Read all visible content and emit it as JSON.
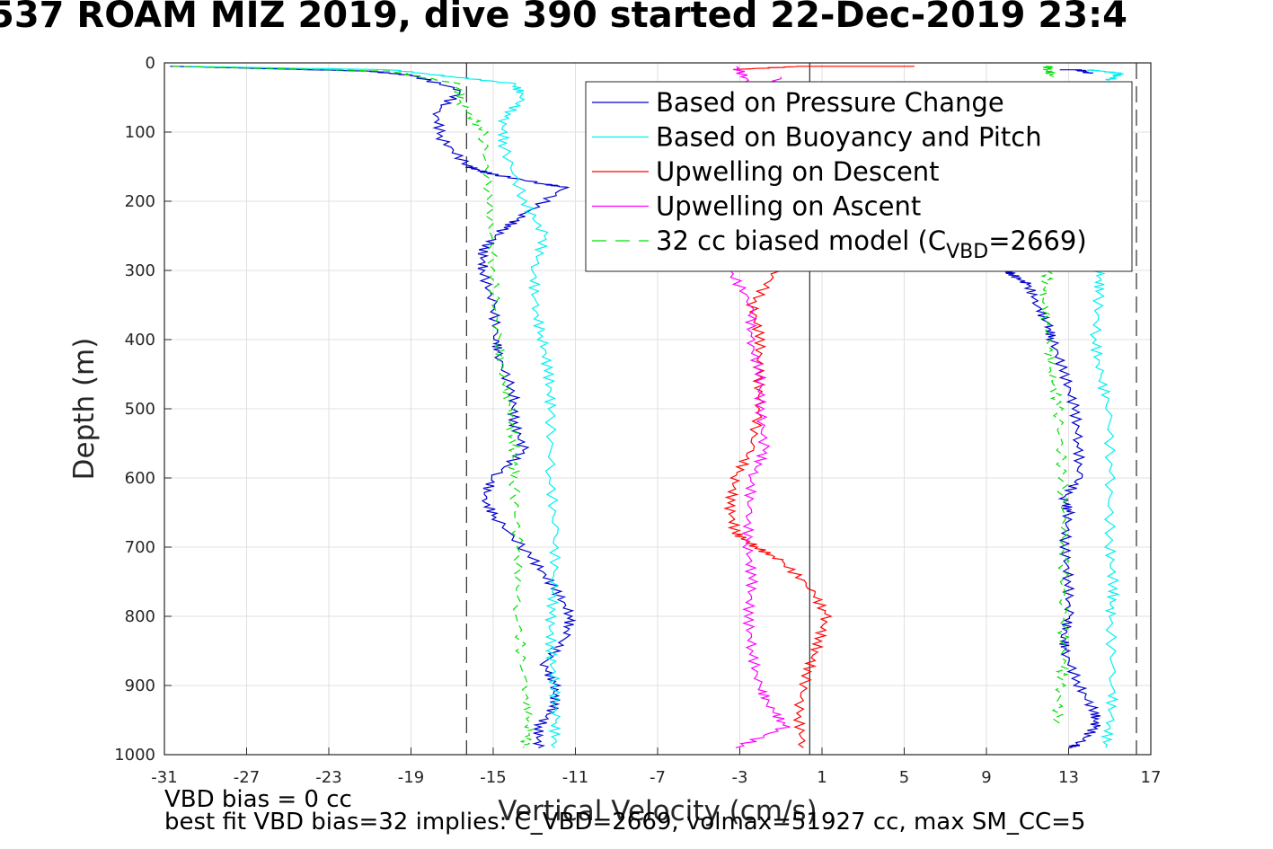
{
  "chart_data": {
    "type": "line",
    "title": "537 ROAM MIZ 2019, dive 390 started 22-Dec-2019 23:4",
    "xlabel": "Vertical Velocity (cm/s)",
    "ylabel": "Depth (m)",
    "xlim": [
      -31,
      17
    ],
    "ylim": [
      0,
      1000
    ],
    "y_reversed": true,
    "xticks": [
      "-31",
      "-27",
      "-23",
      "-19",
      "-15",
      "-11",
      "-7",
      "-3",
      "1",
      "5",
      "9",
      "13",
      "17"
    ],
    "yticks": [
      "0",
      "100",
      "200",
      "300",
      "400",
      "500",
      "600",
      "700",
      "800",
      "900",
      "1000"
    ],
    "grid": true,
    "legend_position": "top-right",
    "vertical_reference_lines": [
      -16.3,
      0.4,
      16.3
    ],
    "series": [
      {
        "name": "Based on Pressure Change",
        "color": "#0000cc",
        "segments": [
          {
            "x": [
              -30.5,
              -21,
              -19,
              -16.5,
              -17.8,
              -17.5,
              -16.2,
              -15.2,
              -12.5,
              -11.5,
              -13.5,
              -14.5,
              -15.5,
              -15.5,
              -15,
              -14.8,
              -14.8,
              -14,
              -14,
              -13.5,
              -15,
              -15.5,
              -14.8,
              -13,
              -12,
              -11.2,
              -11.5,
              -12.5,
              -12,
              -12,
              -12.8,
              -12.8
            ],
            "y": [
              5,
              12,
              18,
              40,
              70,
              110,
              150,
              160,
              175,
              180,
              220,
              240,
              270,
              300,
              350,
              400,
              420,
              480,
              520,
              560,
              600,
              630,
              660,
              720,
              760,
              800,
              830,
              870,
              900,
              930,
              960,
              990
            ]
          },
          {
            "x": [
              10,
              10.2,
              11,
              11.5,
              12,
              12.2,
              12.8,
              13.3,
              13.5,
              13.5,
              12.8,
              13,
              12.8,
              13,
              13,
              12.8,
              12.8,
              13.5,
              14.3,
              14.3,
              13.5,
              13
            ],
            "y": [
              298,
              305,
              320,
              350,
              380,
              400,
              450,
              500,
              550,
              600,
              630,
              650,
              700,
              750,
              800,
              830,
              850,
              900,
              940,
              960,
              985,
              990
            ]
          },
          {
            "x": [
              12.8,
              13.5,
              14
            ],
            "y": [
              10,
              10,
              15
            ]
          }
        ]
      },
      {
        "name": "Based on Buoyancy and Pitch",
        "color": "#00f0f0",
        "segments": [
          {
            "x": [
              -30,
              -20,
              -17,
              -14,
              -13.5,
              -14.5,
              -14.5,
              -13.5,
              -12.5,
              -13,
              -13,
              -12.6,
              -12.3,
              -12.2,
              -12.2,
              -12,
              -12,
              -12.2,
              -12.2,
              -12,
              -12,
              -12
            ],
            "y": [
              5,
              10,
              20,
              30,
              50,
              80,
              120,
              200,
              250,
              300,
              350,
              400,
              450,
              500,
              600,
              680,
              750,
              800,
              850,
              900,
              950,
              990
            ]
          },
          {
            "x": [
              14.5,
              14.5,
              14.3,
              14.5,
              15,
              15,
              15,
              15.2,
              15,
              15.2,
              15,
              14.8
            ],
            "y": [
              298,
              330,
              400,
              450,
              500,
              600,
              700,
              760,
              800,
              900,
              950,
              990
            ]
          },
          {
            "x": [
              14,
              15.5,
              15
            ],
            "y": [
              10,
              15,
              25
            ]
          }
        ]
      },
      {
        "name": "Upwelling on Descent",
        "color": "#ff0000",
        "segments": [
          {
            "x": [
              -1.2,
              -2.4,
              -2,
              -2.1,
              -2,
              -2.5,
              -3.2,
              -3.5,
              -3.2,
              -2.2,
              -1,
              0.5,
              1.2,
              0.8,
              0.3,
              -0.2,
              0.1
            ],
            "y": [
              300,
              350,
              400,
              450,
              500,
              560,
              600,
              640,
              680,
              700,
              720,
              760,
              800,
              840,
              880,
              940,
              990
            ]
          },
          {
            "x": [
              -3.5,
              0,
              5.5
            ],
            "y": [
              10,
              5,
              5
            ]
          }
        ]
      },
      {
        "name": "Upwelling on Ascent",
        "color": "#ff00ff",
        "segments": [
          {
            "x": [
              -3.5,
              -2.4,
              -2.5,
              -2,
              -2,
              -1.8,
              -2.4,
              -2.6,
              -2.6,
              -2.4,
              -2.6,
              -2.4,
              -2.1,
              -1.5,
              -0.8,
              -3.2
            ],
            "y": [
              300,
              350,
              400,
              450,
              500,
              560,
              600,
              650,
              700,
              750,
              800,
              850,
              900,
              930,
              960,
              990
            ]
          },
          {
            "x": [
              -3.2,
              -2.5,
              -2,
              -1
            ],
            "y": [
              5,
              30,
              50,
              20
            ]
          }
        ]
      },
      {
        "name": "32 cc biased model (C_VBD=2669)",
        "color": "#00e000",
        "dash": true,
        "segments": [
          {
            "x": [
              -30.5,
              -20,
              -16.8,
              -16.5,
              -15.5,
              -15.2,
              -15,
              -14.8,
              -14.5,
              -14.2,
              -14,
              -14,
              -13.8,
              -13.8,
              -13.5,
              -13.2,
              -13.5
            ],
            "y": [
              5,
              12,
              30,
              60,
              100,
              200,
              300,
              400,
              450,
              500,
              550,
              600,
              700,
              800,
              900,
              960,
              990
            ]
          },
          {
            "x": [
              12,
              11.8,
              12,
              12.2,
              12.5,
              12.7,
              12.8,
              12.7,
              12.8,
              12.6,
              12.4
            ],
            "y": [
              300,
              340,
              400,
              450,
              500,
              600,
              700,
              800,
              860,
              900,
              960
            ]
          },
          {
            "x": [
              12,
              12,
              12.2
            ],
            "y": [
              5,
              10,
              20
            ]
          }
        ]
      }
    ],
    "legend_entries": [
      {
        "label": "Based on Pressure Change",
        "color": "#0000cc",
        "dash": false
      },
      {
        "label": "Based on Buoyancy and Pitch",
        "color": "#00f0f0",
        "dash": false
      },
      {
        "label": "Upwelling on Descent",
        "color": "#ff0000",
        "dash": false
      },
      {
        "label": "Upwelling on Ascent",
        "color": "#ff00ff",
        "dash": false
      },
      {
        "label": "32 cc biased model (C",
        "sub": "VBD",
        "tail": "=2669)",
        "color": "#00e000",
        "dash": true
      }
    ]
  },
  "notes": {
    "vbd_bias": "VBD bias = 0 cc",
    "best_fit": "best fit VBD bias=32 implies: C_VBD=2669, volmax=51927 cc, max SM_CC=5"
  }
}
